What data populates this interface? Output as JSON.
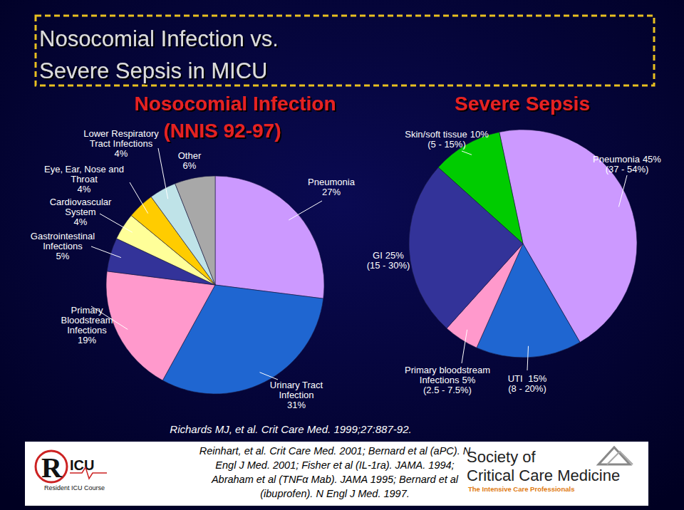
{
  "title": [
    "Nosocomial Infection vs.",
    "Severe Sepsis in MICU"
  ],
  "chart_data": [
    {
      "type": "pie",
      "title": "Nosocomial Infection",
      "subtitle": "(NNIS 92-97)",
      "categories": [
        "Pneumonia",
        "Urinary Tract\nInfection",
        "Primary\nBloodstream\nInfections",
        "Gastrointestinal\nInfections",
        "Cardiovascular\nSystem",
        "Eye, Ear, Nose and\nThroat",
        "Lower Respiratory\nTract Infections",
        "Other"
      ],
      "values": [
        27,
        31,
        19,
        5,
        4,
        4,
        4,
        6
      ],
      "value_labels": [
        "27%",
        "31%",
        "19%",
        "5%",
        "4%",
        "4%",
        "4%",
        "6%"
      ],
      "colors": [
        "#cc99ff",
        "#1f66d1",
        "#ff99cc",
        "#333399",
        "#ffff99",
        "#ffcc00",
        "#bfe3e8",
        "#a8a8a8"
      ],
      "data_labels": true,
      "source": "Richards MJ, et al. Crit Care Med. 1999;27:887-92."
    },
    {
      "type": "pie",
      "title": "Severe Sepsis",
      "categories": [
        "Pneumonia",
        "UTI ",
        "Primary bloodstream\nInfections",
        "GI",
        "Skin/soft tissue"
      ],
      "values": [
        45,
        15,
        5,
        25,
        10
      ],
      "value_labels": [
        "45%",
        "15%",
        "5%",
        "25%",
        "10%"
      ],
      "range_labels": [
        "(37 - 54%)",
        "(8 - 20%)",
        "(2.5 - 7.5%)",
        "(15 - 30%)",
        "(5 - 15%)"
      ],
      "colors": [
        "#cc99ff",
        "#1f66d1",
        "#ff99cc",
        "#333399",
        "#00cc00"
      ],
      "data_labels": true
    }
  ],
  "references": [
    "Reinhart, et al. Crit Care Med. 2001; Bernard et al (aPC). N",
    "Engl J Med. 2001; Fisher et al (IL-1ra). JAMA. 1994;",
    "Abraham et al (TNFα Mab). JAMA 1995; Bernard et al",
    "(ibuprofen). N Engl J Med. 1997."
  ],
  "footer": {
    "left_logo": [
      "R",
      "ICU",
      "Resident ICU Course"
    ],
    "right_logo": [
      "Society of",
      "Critical Care Medicine",
      "The Intensive Care Professionals"
    ]
  }
}
